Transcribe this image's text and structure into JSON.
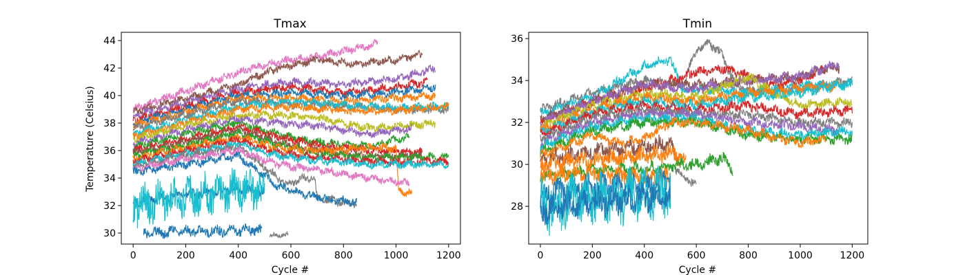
{
  "chart_data": [
    {
      "type": "line",
      "title": "Tmax",
      "xlabel": "Cycle #",
      "ylabel": "Temperature (Celsius)",
      "xlim": [
        -45,
        1245
      ],
      "ylim": [
        29.2,
        44.6
      ],
      "xticks": [
        0,
        200,
        400,
        600,
        800,
        1000,
        1200
      ],
      "xtick_labels": [
        "0",
        "200",
        "400",
        "600",
        "800",
        "1000",
        "1200"
      ],
      "yticks": [
        30,
        32,
        34,
        36,
        38,
        40,
        42,
        44
      ],
      "ytick_labels": [
        "30",
        "32",
        "34",
        "36",
        "38",
        "40",
        "42",
        "44"
      ],
      "grid": false,
      "series": [
        {
          "color": "#e377c2",
          "noise": 0.25,
          "x": [
            0,
            150,
            300,
            450,
            600,
            750,
            930
          ],
          "y": [
            39.0,
            40.0,
            41.0,
            42.0,
            42.6,
            43.0,
            43.8
          ]
        },
        {
          "color": "#8c564b",
          "noise": 0.25,
          "x": [
            0,
            200,
            400,
            550,
            700,
            850,
            1000,
            1100
          ],
          "y": [
            38.8,
            39.8,
            40.8,
            42.0,
            42.6,
            42.3,
            42.6,
            43.0
          ]
        },
        {
          "color": "#9467bd",
          "noise": 0.25,
          "x": [
            0,
            200,
            400,
            600,
            800,
            1000,
            1150
          ],
          "y": [
            38.5,
            39.5,
            40.5,
            41.0,
            40.8,
            41.2,
            42.0
          ]
        },
        {
          "color": "#d62728",
          "noise": 0.25,
          "x": [
            0,
            200,
            400,
            600,
            800,
            1000,
            1120
          ],
          "y": [
            38.2,
            39.2,
            40.2,
            40.6,
            40.2,
            40.6,
            41.0
          ]
        },
        {
          "color": "#1f77b4",
          "noise": 0.25,
          "x": [
            0,
            200,
            400,
            600,
            800,
            1000,
            1150
          ],
          "y": [
            38.0,
            39.0,
            40.0,
            40.2,
            40.0,
            40.2,
            40.6
          ]
        },
        {
          "color": "#ff7f0e",
          "noise": 0.25,
          "x": [
            0,
            200,
            400,
            600,
            800,
            1000,
            1150
          ],
          "y": [
            37.8,
            38.8,
            39.8,
            39.8,
            39.6,
            39.8,
            40.0
          ]
        },
        {
          "color": "#7f7f7f",
          "noise": 0.25,
          "x": [
            0,
            200,
            400,
            600,
            800,
            1000,
            1200
          ],
          "y": [
            37.6,
            38.6,
            39.6,
            39.4,
            39.2,
            39.0,
            39.0
          ]
        },
        {
          "color": "#17becf",
          "noise": 0.25,
          "x": [
            0,
            200,
            400,
            600,
            800,
            1000,
            1200
          ],
          "y": [
            37.2,
            38.2,
            39.2,
            39.6,
            39.3,
            39.1,
            39.2
          ]
        },
        {
          "color": "#ff7f0e",
          "noise": 0.25,
          "x": [
            0,
            200,
            400,
            600,
            800,
            1000,
            1200
          ],
          "y": [
            37.0,
            38.0,
            39.0,
            39.2,
            38.9,
            38.9,
            39.2
          ]
        },
        {
          "color": "#bcbd22",
          "noise": 0.25,
          "x": [
            0,
            200,
            400,
            550,
            700,
            900,
            1150
          ],
          "y": [
            36.8,
            37.8,
            38.6,
            38.6,
            38.4,
            37.6,
            38.0
          ]
        },
        {
          "color": "#9467bd",
          "noise": 0.25,
          "x": [
            0,
            200,
            400,
            550,
            700,
            900,
            1060
          ],
          "y": [
            36.5,
            37.5,
            38.3,
            38.0,
            37.8,
            37.2,
            37.6
          ]
        },
        {
          "color": "#2ca02c",
          "noise": 0.25,
          "x": [
            0,
            200,
            400,
            550,
            700,
            900,
            1050
          ],
          "y": [
            36.2,
            37.2,
            38.0,
            37.2,
            36.6,
            36.3,
            37.0
          ]
        },
        {
          "color": "#d62728",
          "noise": 0.25,
          "x": [
            0,
            200,
            400,
            550,
            700,
            900,
            1100
          ],
          "y": [
            36.0,
            36.8,
            37.7,
            37.0,
            36.4,
            36.0,
            35.9
          ]
        },
        {
          "color": "#8c564b",
          "noise": 0.25,
          "x": [
            0,
            200,
            400,
            550,
            700,
            900,
            1100
          ],
          "y": [
            35.8,
            36.6,
            37.5,
            36.6,
            36.0,
            35.6,
            35.6
          ]
        },
        {
          "color": "#2ca02c",
          "noise": 0.25,
          "x": [
            0,
            200,
            400,
            550,
            700,
            900,
            1200
          ],
          "y": [
            35.6,
            36.4,
            37.3,
            36.4,
            35.8,
            35.5,
            35.5
          ]
        },
        {
          "color": "#ff7f0e",
          "noise": 0.25,
          "x": [
            0,
            200,
            400,
            550,
            700,
            900,
            1000,
            1010,
            1060
          ],
          "y": [
            35.4,
            36.2,
            37.0,
            36.2,
            36.0,
            36.2,
            36.2,
            33.0,
            33.0
          ]
        },
        {
          "color": "#d62728",
          "noise": 0.25,
          "x": [
            0,
            200,
            400,
            550,
            700,
            900,
            1200
          ],
          "y": [
            35.2,
            36.0,
            36.8,
            35.8,
            35.5,
            35.2,
            35.2
          ]
        },
        {
          "color": "#17becf",
          "noise": 0.25,
          "x": [
            0,
            200,
            400,
            550,
            700,
            900,
            1200
          ],
          "y": [
            35.0,
            35.8,
            36.5,
            35.6,
            35.3,
            35.0,
            35.0
          ]
        },
        {
          "color": "#7f7f7f",
          "noise": 0.25,
          "x": [
            0,
            200,
            400,
            520,
            580,
            650,
            690,
            700,
            850
          ],
          "y": [
            34.8,
            35.6,
            36.3,
            34.5,
            33.5,
            34.0,
            34.0,
            32.5,
            32.1
          ]
        },
        {
          "color": "#e377c2",
          "noise": 0.25,
          "x": [
            0,
            200,
            400,
            550,
            700,
            900,
            1050
          ],
          "y": [
            34.6,
            35.4,
            36.0,
            35.0,
            34.6,
            34.0,
            33.6
          ]
        },
        {
          "color": "#1f77b4",
          "noise": 0.25,
          "x": [
            0,
            200,
            400,
            550,
            700,
            850
          ],
          "y": [
            34.4,
            35.0,
            35.6,
            33.4,
            32.6,
            32.2
          ]
        },
        {
          "color": "#1f77b4",
          "noise": 0.3,
          "x": [
            0,
            200,
            400,
            500
          ],
          "y": [
            32.3,
            32.8,
            33.2,
            33.0
          ]
        },
        {
          "color": "#17becf",
          "noise": 1.2,
          "x": [
            0,
            200,
            400,
            500
          ],
          "y": [
            32.0,
            32.6,
            33.2,
            33.0
          ]
        },
        {
          "color": "#1f77b4",
          "noise": 0.35,
          "x": [
            40,
            200,
            400,
            490
          ],
          "y": [
            30.0,
            30.1,
            30.2,
            30.2
          ]
        },
        {
          "color": "#7f7f7f",
          "noise": 0.15,
          "x": [
            520,
            590
          ],
          "y": [
            29.8,
            29.9
          ]
        }
      ]
    },
    {
      "type": "line",
      "title": "Tmin",
      "xlabel": "Cycle #",
      "ylabel": "",
      "xlim": [
        -45,
        1260
      ],
      "ylim": [
        26.2,
        36.3
      ],
      "xticks": [
        0,
        200,
        400,
        600,
        800,
        1000,
        1200
      ],
      "xtick_labels": [
        "0",
        "200",
        "400",
        "600",
        "800",
        "1000",
        "1200"
      ],
      "yticks": [
        28,
        30,
        32,
        34,
        36
      ],
      "ytick_labels": [
        "28",
        "30",
        "32",
        "34",
        "36"
      ],
      "grid": false,
      "series": [
        {
          "color": "#7f7f7f",
          "noise": 0.2,
          "x": [
            0,
            200,
            400,
            550,
            600,
            650,
            700,
            750,
            800,
            1000,
            1200
          ],
          "y": [
            32.6,
            33.4,
            34.0,
            33.8,
            35.5,
            35.8,
            35.2,
            33.8,
            33.5,
            33.6,
            34.0
          ]
        },
        {
          "color": "#17becf",
          "noise": 0.2,
          "x": [
            0,
            200,
            400,
            500,
            550,
            650,
            800,
            1000,
            1200
          ],
          "y": [
            32.4,
            33.2,
            34.7,
            35.0,
            33.5,
            33.6,
            33.4,
            33.8,
            33.8
          ]
        },
        {
          "color": "#d62728",
          "noise": 0.2,
          "x": [
            0,
            200,
            400,
            600,
            700,
            800,
            900,
            1000,
            1100
          ],
          "y": [
            32.0,
            33.0,
            33.6,
            34.4,
            34.6,
            34.2,
            33.8,
            34.0,
            34.6
          ]
        },
        {
          "color": "#8c564b",
          "noise": 0.2,
          "x": [
            0,
            200,
            400,
            600,
            800,
            1000,
            1100,
            1150
          ],
          "y": [
            32.2,
            33.0,
            33.8,
            33.8,
            34.0,
            34.2,
            34.6,
            34.6
          ]
        },
        {
          "color": "#9467bd",
          "noise": 0.2,
          "x": [
            0,
            200,
            400,
            600,
            800,
            1000,
            1150
          ],
          "y": [
            32.0,
            33.0,
            33.8,
            33.6,
            34.0,
            34.2,
            34.8
          ]
        },
        {
          "color": "#bcbd22",
          "noise": 0.2,
          "x": [
            0,
            200,
            400,
            600,
            800,
            900,
            1000,
            1200
          ],
          "y": [
            31.8,
            32.8,
            33.4,
            33.2,
            34.2,
            33.4,
            32.8,
            33.0
          ]
        },
        {
          "color": "#ff7f0e",
          "noise": 0.2,
          "x": [
            0,
            200,
            400,
            600,
            800,
            1000,
            1150
          ],
          "y": [
            31.6,
            32.6,
            33.2,
            33.0,
            33.4,
            33.6,
            33.8
          ]
        },
        {
          "color": "#17becf",
          "noise": 0.2,
          "x": [
            0,
            200,
            400,
            600,
            800,
            1000,
            1200
          ],
          "y": [
            31.5,
            32.5,
            33.0,
            32.8,
            33.2,
            33.4,
            33.9
          ]
        },
        {
          "color": "#d62728",
          "noise": 0.2,
          "x": [
            0,
            200,
            400,
            600,
            800,
            1000,
            1200
          ],
          "y": [
            31.4,
            32.4,
            32.8,
            32.6,
            32.8,
            32.4,
            32.6
          ]
        },
        {
          "color": "#7f7f7f",
          "noise": 0.2,
          "x": [
            0,
            200,
            400,
            600,
            800,
            1000,
            1200
          ],
          "y": [
            31.2,
            32.2,
            32.6,
            32.4,
            32.4,
            32.0,
            32.0
          ]
        },
        {
          "color": "#9467bd",
          "noise": 0.2,
          "x": [
            0,
            200,
            400,
            600,
            800,
            1000,
            1150
          ],
          "y": [
            31.0,
            32.0,
            32.4,
            32.4,
            32.0,
            31.8,
            31.6
          ]
        },
        {
          "color": "#17becf",
          "noise": 0.2,
          "x": [
            0,
            200,
            400,
            600,
            800,
            1000,
            1200
          ],
          "y": [
            30.8,
            31.8,
            32.2,
            32.2,
            31.6,
            31.4,
            31.6
          ]
        },
        {
          "color": "#2ca02c",
          "noise": 0.2,
          "x": [
            0,
            200,
            400,
            600,
            800,
            1000,
            1200
          ],
          "y": [
            30.6,
            31.6,
            32.0,
            32.0,
            31.4,
            31.2,
            31.2
          ]
        },
        {
          "color": "#ff7f0e",
          "noise": 0.2,
          "x": [
            0,
            200,
            300,
            400,
            500,
            600,
            800,
            1000,
            1100
          ],
          "y": [
            30.4,
            31.4,
            31.0,
            31.2,
            32.0,
            32.0,
            31.6,
            31.0,
            31.2
          ]
        },
        {
          "color": "#8c564b",
          "noise": 0.35,
          "x": [
            0,
            200,
            400,
            500,
            530
          ],
          "y": [
            30.2,
            30.6,
            30.8,
            31.0,
            30.0
          ]
        },
        {
          "color": "#ff7f0e",
          "noise": 0.35,
          "x": [
            0,
            200,
            400,
            500,
            560
          ],
          "y": [
            30.0,
            30.2,
            30.4,
            30.6,
            30.2
          ]
        },
        {
          "color": "#7f7f7f",
          "noise": 0.2,
          "x": [
            520,
            560,
            600
          ],
          "y": [
            29.8,
            29.3,
            29.1
          ]
        },
        {
          "color": "#2ca02c",
          "noise": 0.25,
          "x": [
            0,
            200,
            400,
            500,
            600,
            700,
            740
          ],
          "y": [
            29.4,
            29.7,
            29.8,
            29.9,
            30.0,
            30.3,
            29.8
          ]
        },
        {
          "color": "#ff7f0e",
          "noise": 0.35,
          "x": [
            0,
            200,
            400,
            500
          ],
          "y": [
            29.5,
            29.6,
            29.4,
            29.5
          ]
        },
        {
          "color": "#1f77b4",
          "noise": 0.5,
          "x": [
            0,
            200,
            400,
            500
          ],
          "y": [
            28.6,
            28.9,
            29.0,
            29.2
          ]
        },
        {
          "color": "#17becf",
          "noise": 1.0,
          "x": [
            0,
            200,
            400,
            500
          ],
          "y": [
            28.0,
            28.4,
            28.6,
            28.8
          ]
        },
        {
          "color": "#1f77b4",
          "noise": 0.55,
          "x": [
            0,
            200,
            400,
            500
          ],
          "y": [
            27.8,
            28.2,
            28.4,
            28.6
          ]
        }
      ]
    }
  ]
}
